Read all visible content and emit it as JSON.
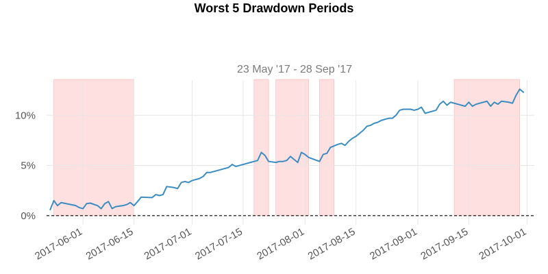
{
  "chart_data": {
    "type": "line",
    "title": "Worst 5 Drawdown Periods",
    "subtitle": "23 May '17 - 28 Sep '17",
    "xlabel": "",
    "ylabel": "",
    "x_range": [
      "2017-05-22",
      "2017-10-03"
    ],
    "ylim": [
      -0.9,
      13.5
    ],
    "y_ticks": [
      {
        "value": 0,
        "label": "0%"
      },
      {
        "value": 5,
        "label": "5%"
      },
      {
        "value": 10,
        "label": "10%"
      }
    ],
    "x_ticks": [
      {
        "date": "2017-06-01",
        "label": "2017-06-01"
      },
      {
        "date": "2017-06-15",
        "label": "2017-06-15"
      },
      {
        "date": "2017-07-01",
        "label": "2017-07-01"
      },
      {
        "date": "2017-07-15",
        "label": "2017-07-15"
      },
      {
        "date": "2017-08-01",
        "label": "2017-08-01"
      },
      {
        "date": "2017-08-15",
        "label": "2017-08-15"
      },
      {
        "date": "2017-09-01",
        "label": "2017-09-01"
      },
      {
        "date": "2017-09-15",
        "label": "2017-09-15"
      },
      {
        "date": "2017-10-01",
        "label": "2017-10-01"
      }
    ],
    "grid": true,
    "baseline": 0,
    "colors": {
      "line": "#3a8cc1",
      "shade": "#ffd6d6",
      "shade_edge": "#ffb0b0",
      "grid": "#e6e6e6",
      "baseline": "#000000"
    },
    "drawdown_periods": [
      {
        "start": "2017-05-24",
        "end": "2017-06-15"
      },
      {
        "start": "2017-07-18",
        "end": "2017-07-22"
      },
      {
        "start": "2017-07-24",
        "end": "2017-08-02"
      },
      {
        "start": "2017-08-05",
        "end": "2017-08-09"
      },
      {
        "start": "2017-09-11",
        "end": "2017-09-29"
      }
    ],
    "series": [
      {
        "values": [
          [
            "2017-05-23",
            0.6
          ],
          [
            "2017-05-24",
            1.5
          ],
          [
            "2017-05-25",
            1.0
          ],
          [
            "2017-05-26",
            1.3
          ],
          [
            "2017-05-30",
            1.0
          ],
          [
            "2017-05-31",
            0.8
          ],
          [
            "2017-06-01",
            0.7
          ],
          [
            "2017-06-02",
            1.2
          ],
          [
            "2017-06-03",
            1.25
          ],
          [
            "2017-06-05",
            1.0
          ],
          [
            "2017-06-06",
            0.7
          ],
          [
            "2017-06-07",
            1.2
          ],
          [
            "2017-06-08",
            1.4
          ],
          [
            "2017-06-09",
            0.7
          ],
          [
            "2017-06-10",
            0.9
          ],
          [
            "2017-06-12",
            1.0
          ],
          [
            "2017-06-13",
            1.1
          ],
          [
            "2017-06-14",
            1.3
          ],
          [
            "2017-06-15",
            1.0
          ],
          [
            "2017-06-16",
            1.4
          ],
          [
            "2017-06-17",
            1.85
          ],
          [
            "2017-06-20",
            1.8
          ],
          [
            "2017-06-21",
            2.1
          ],
          [
            "2017-06-22",
            2.0
          ],
          [
            "2017-06-23",
            2.1
          ],
          [
            "2017-06-24",
            2.9
          ],
          [
            "2017-06-26",
            2.8
          ],
          [
            "2017-06-27",
            2.7
          ],
          [
            "2017-06-28",
            3.3
          ],
          [
            "2017-06-29",
            3.4
          ],
          [
            "2017-06-30",
            3.3
          ],
          [
            "2017-07-01",
            3.5
          ],
          [
            "2017-07-03",
            3.7
          ],
          [
            "2017-07-04",
            3.9
          ],
          [
            "2017-07-05",
            4.3
          ],
          [
            "2017-07-06",
            4.3
          ],
          [
            "2017-07-07",
            4.4
          ],
          [
            "2017-07-10",
            4.7
          ],
          [
            "2017-07-11",
            4.8
          ],
          [
            "2017-07-12",
            5.1
          ],
          [
            "2017-07-13",
            4.9
          ],
          [
            "2017-07-14",
            5.0
          ],
          [
            "2017-07-17",
            5.3
          ],
          [
            "2017-07-18",
            5.4
          ],
          [
            "2017-07-19",
            5.5
          ],
          [
            "2017-07-20",
            6.3
          ],
          [
            "2017-07-21",
            6.0
          ],
          [
            "2017-07-22",
            5.4
          ],
          [
            "2017-07-24",
            5.3
          ],
          [
            "2017-07-25",
            5.4
          ],
          [
            "2017-07-26",
            5.4
          ],
          [
            "2017-07-27",
            5.5
          ],
          [
            "2017-07-28",
            5.9
          ],
          [
            "2017-07-30",
            5.3
          ],
          [
            "2017-07-31",
            6.3
          ],
          [
            "2017-08-01",
            6.1
          ],
          [
            "2017-08-02",
            5.8
          ],
          [
            "2017-08-05",
            5.4
          ],
          [
            "2017-08-06",
            6.1
          ],
          [
            "2017-08-07",
            6.2
          ],
          [
            "2017-08-08",
            6.8
          ],
          [
            "2017-08-10",
            7.1
          ],
          [
            "2017-08-11",
            7.2
          ],
          [
            "2017-08-12",
            7.0
          ],
          [
            "2017-08-13",
            7.4
          ],
          [
            "2017-08-14",
            7.7
          ],
          [
            "2017-08-15",
            7.9
          ],
          [
            "2017-08-16",
            8.2
          ],
          [
            "2017-08-17",
            8.5
          ],
          [
            "2017-08-18",
            8.9
          ],
          [
            "2017-08-19",
            9.0
          ],
          [
            "2017-08-20",
            9.2
          ],
          [
            "2017-08-21",
            9.3
          ],
          [
            "2017-08-22",
            9.5
          ],
          [
            "2017-08-23",
            9.6
          ],
          [
            "2017-08-24",
            9.7
          ],
          [
            "2017-08-25",
            9.7
          ],
          [
            "2017-08-26",
            10.0
          ],
          [
            "2017-08-27",
            10.5
          ],
          [
            "2017-08-28",
            10.6
          ],
          [
            "2017-08-30",
            10.6
          ],
          [
            "2017-08-31",
            10.5
          ],
          [
            "2017-09-01",
            10.6
          ],
          [
            "2017-09-02",
            10.8
          ],
          [
            "2017-09-03",
            10.2
          ],
          [
            "2017-09-05",
            10.4
          ],
          [
            "2017-09-06",
            10.5
          ],
          [
            "2017-09-07",
            11.1
          ],
          [
            "2017-09-08",
            11.4
          ],
          [
            "2017-09-09",
            11.0
          ],
          [
            "2017-09-10",
            11.3
          ],
          [
            "2017-09-12",
            11.1
          ],
          [
            "2017-09-13",
            11.0
          ],
          [
            "2017-09-14",
            10.9
          ],
          [
            "2017-09-15",
            11.3
          ],
          [
            "2017-09-16",
            10.9
          ],
          [
            "2017-09-17",
            11.1
          ],
          [
            "2017-09-19",
            11.3
          ],
          [
            "2017-09-20",
            11.4
          ],
          [
            "2017-09-21",
            10.9
          ],
          [
            "2017-09-22",
            11.3
          ],
          [
            "2017-09-23",
            11.1
          ],
          [
            "2017-09-24",
            11.4
          ],
          [
            "2017-09-26",
            11.3
          ],
          [
            "2017-09-27",
            11.2
          ],
          [
            "2017-09-28",
            12.0
          ],
          [
            "2017-09-29",
            12.6
          ],
          [
            "2017-09-30",
            12.3
          ]
        ]
      }
    ]
  }
}
